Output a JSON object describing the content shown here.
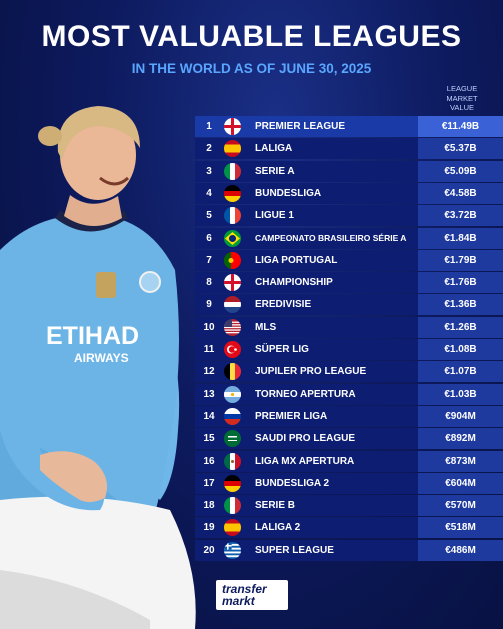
{
  "title": "MOST VALUABLE LEAGUES",
  "subtitle": "IN THE WORLD AS OF JUNE 30, 2025",
  "column_header": [
    "LEAGUE",
    "MARKET",
    "VALUE"
  ],
  "logo": {
    "line1": "transfer",
    "line2": "markt"
  },
  "chart_data": {
    "type": "table",
    "title": "MOST VALUABLE LEAGUES",
    "subtitle": "IN THE WORLD AS OF JUNE 30, 2025",
    "columns": [
      "",
      "",
      "",
      "LEAGUE MARKET VALUE"
    ],
    "rows": [
      {
        "rank": "1",
        "flag": "england",
        "league": "PREMIER LEAGUE",
        "value": "€11.49B"
      },
      {
        "rank": "2",
        "flag": "spain",
        "league": "LALIGA",
        "value": "€5.37B"
      },
      {
        "rank": "3",
        "flag": "italy",
        "league": "SERIE A",
        "value": "€5.09B"
      },
      {
        "rank": "4",
        "flag": "germany",
        "league": "BUNDESLIGA",
        "value": "€4.58B"
      },
      {
        "rank": "5",
        "flag": "france",
        "league": "LIGUE 1",
        "value": "€3.72B"
      },
      {
        "rank": "6",
        "flag": "brazil",
        "league": "CAMPEONATO BRASILEIRO SÉRIE A",
        "value": "€1.84B"
      },
      {
        "rank": "7",
        "flag": "portugal",
        "league": "LIGA PORTUGAL",
        "value": "€1.79B"
      },
      {
        "rank": "8",
        "flag": "england",
        "league": "CHAMPIONSHIP",
        "value": "€1.76B"
      },
      {
        "rank": "9",
        "flag": "netherlands",
        "league": "EREDIVISIE",
        "value": "€1.36B"
      },
      {
        "rank": "10",
        "flag": "usa",
        "league": "MLS",
        "value": "€1.26B"
      },
      {
        "rank": "11",
        "flag": "turkey",
        "league": "SÜPER LIG",
        "value": "€1.08B"
      },
      {
        "rank": "12",
        "flag": "belgium",
        "league": "JUPILER PRO LEAGUE",
        "value": "€1.07B"
      },
      {
        "rank": "13",
        "flag": "argentina",
        "league": "TORNEO APERTURA",
        "value": "€1.03B"
      },
      {
        "rank": "14",
        "flag": "russia",
        "league": "PREMIER LIGA",
        "value": "€904M"
      },
      {
        "rank": "15",
        "flag": "saudi",
        "league": "SAUDI PRO LEAGUE",
        "value": "€892M"
      },
      {
        "rank": "16",
        "flag": "mexico",
        "league": "LIGA MX APERTURA",
        "value": "€873M"
      },
      {
        "rank": "17",
        "flag": "germany",
        "league": "BUNDESLIGA 2",
        "value": "€604M"
      },
      {
        "rank": "18",
        "flag": "italy",
        "league": "SERIE B",
        "value": "€570M"
      },
      {
        "rank": "19",
        "flag": "spain",
        "league": "LALIGA 2",
        "value": "€518M"
      },
      {
        "rank": "20",
        "flag": "greece",
        "league": "SUPER LEAGUE",
        "value": "€486M"
      }
    ]
  },
  "colors": {
    "background": "#0d1a5e",
    "row": "#0d1e72",
    "value_cell": "#1e3a9e",
    "highlight_value_cell": "#3a62d6",
    "subtitle": "#5aa6ff"
  }
}
